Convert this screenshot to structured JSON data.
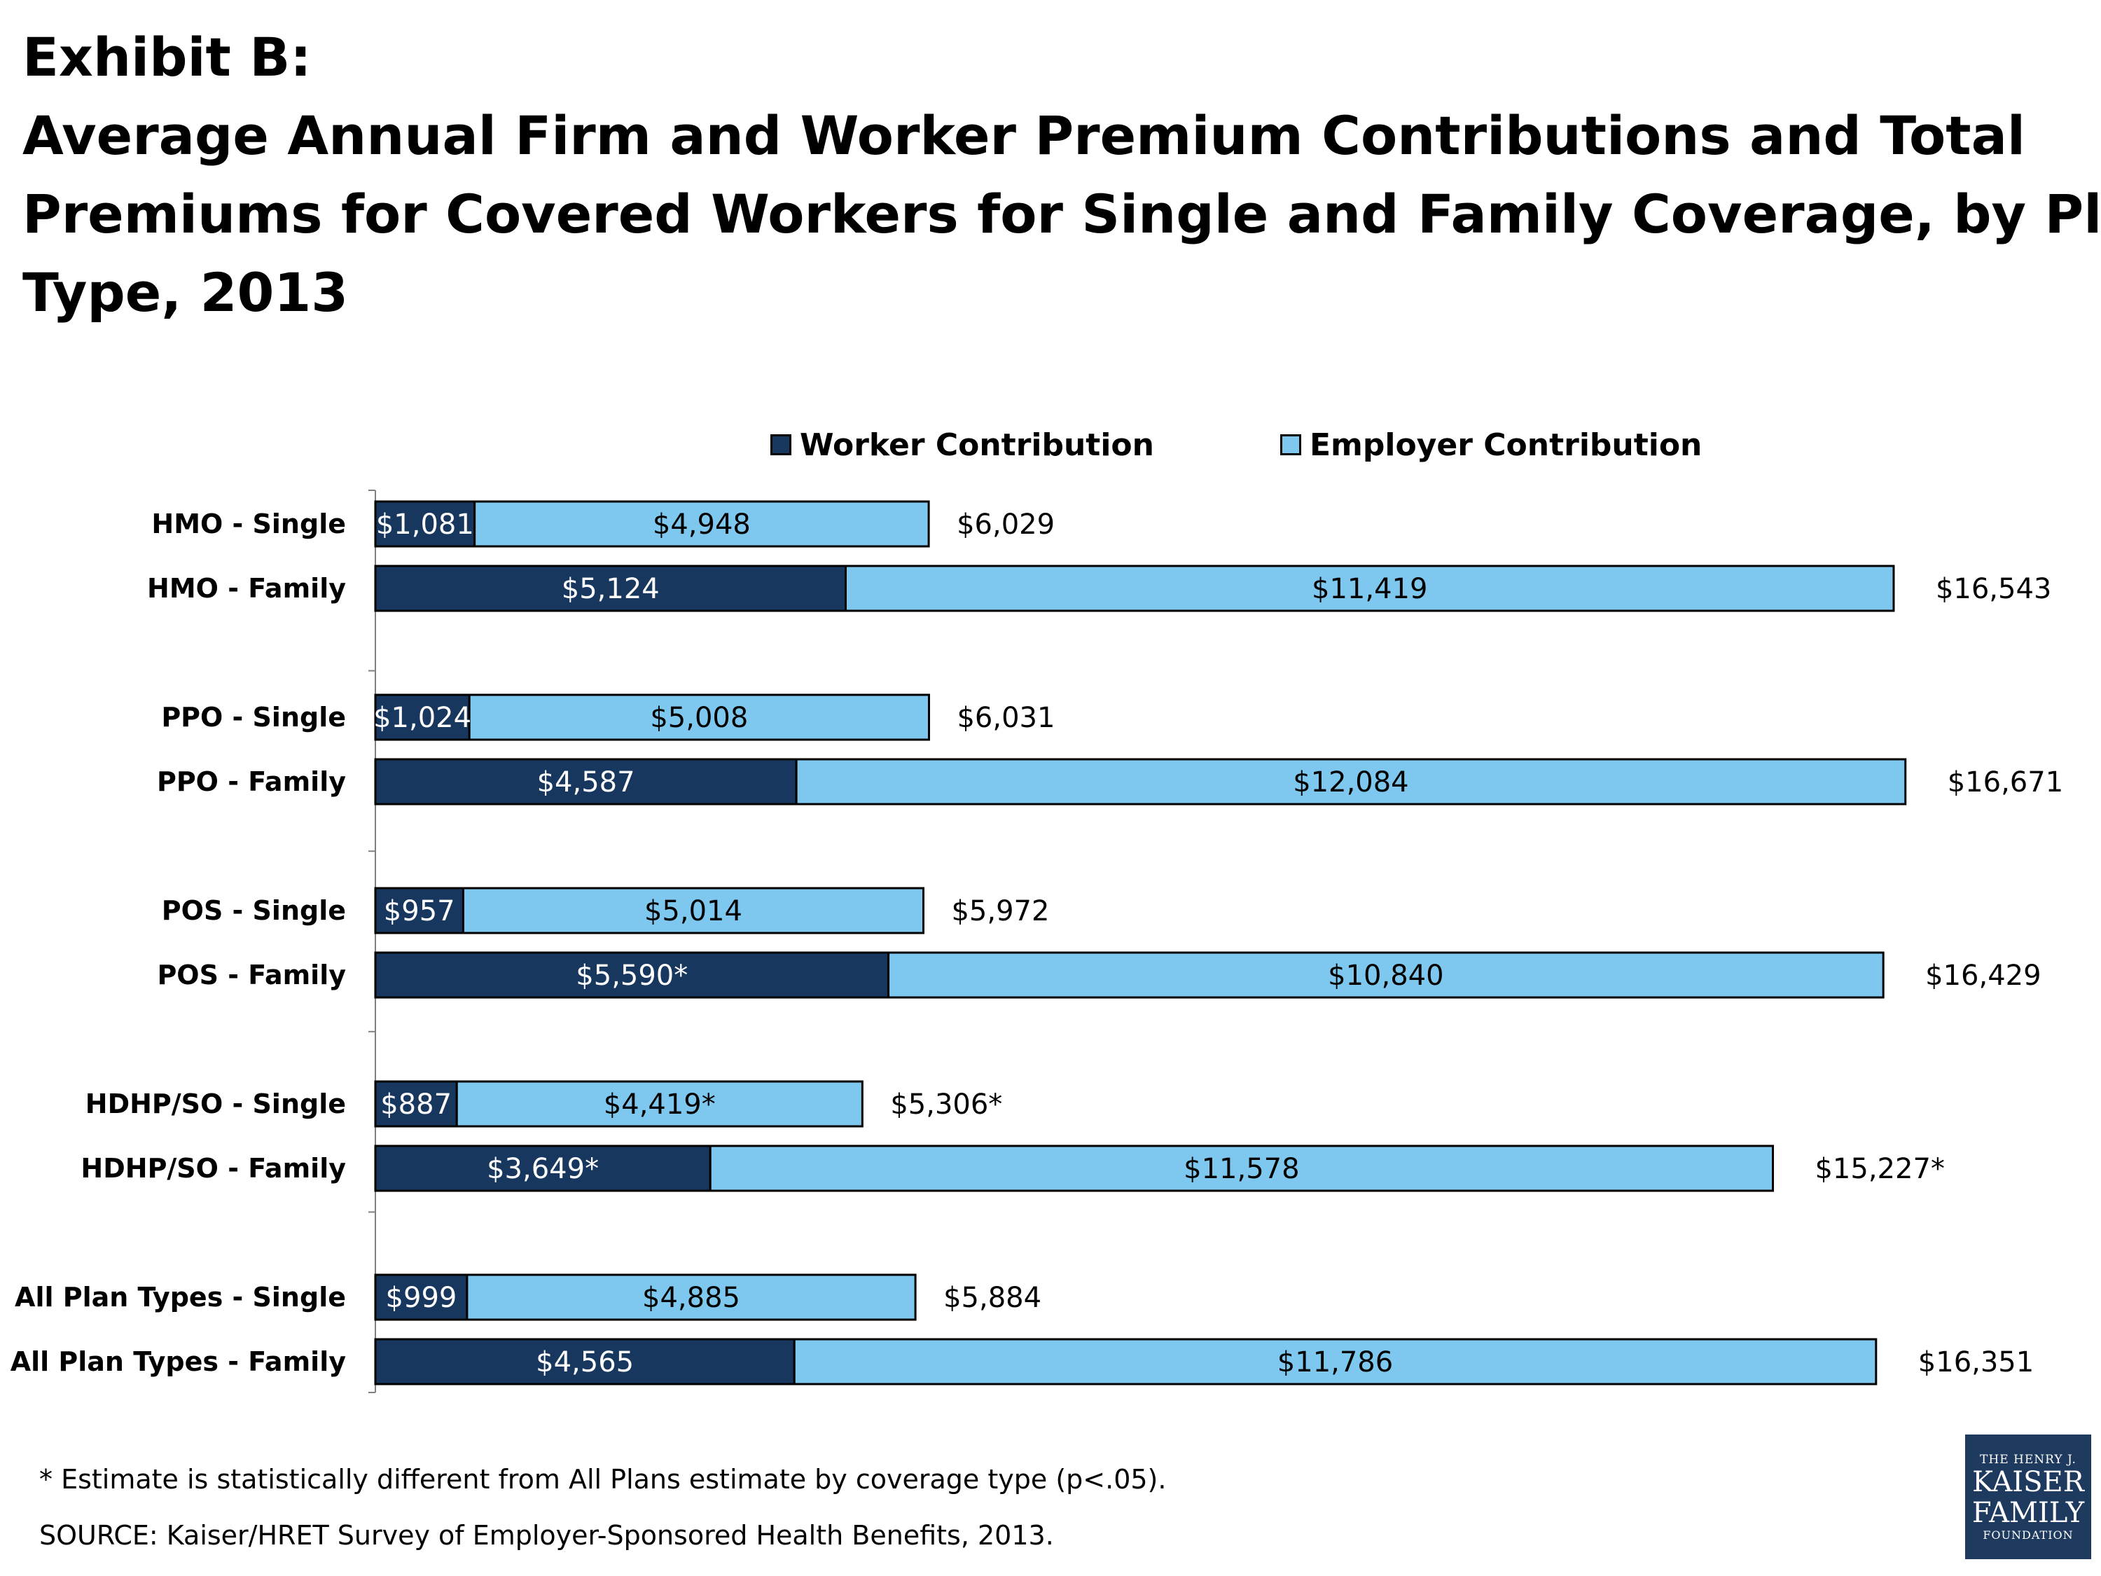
{
  "title": {
    "line1": "Exhibit B:",
    "line2": "Average Annual Firm and Worker Premium Contributions and Total",
    "line3": "Premiums for Covered Workers for Single and Family Coverage, by Plan",
    "line4": "Type, 2013"
  },
  "colors": {
    "worker": "#17375e",
    "employer": "#7ec8ef",
    "border": "#000000"
  },
  "legend": [
    {
      "label": "Worker Contribution",
      "color": "#17375e"
    },
    {
      "label": "Employer Contribution",
      "color": "#7ec8ef"
    }
  ],
  "chart_data": {
    "type": "bar",
    "orientation": "horizontal",
    "stacked": true,
    "xlim": [
      0,
      18000
    ],
    "categories": [
      "HMO - Single",
      "HMO - Family",
      "PPO - Single",
      "PPO - Family",
      "POS - Single",
      "POS - Family",
      "HDHP/SO - Single",
      "HDHP/SO - Family",
      "All Plan Types - Single",
      "All Plan Types - Family"
    ],
    "series": [
      {
        "name": "Worker Contribution",
        "values": [
          1081,
          5124,
          1024,
          4587,
          957,
          5590,
          887,
          3649,
          999,
          4565
        ],
        "labels": [
          "$1,081",
          "$5,124",
          "$1,024",
          "$4,587",
          "$957",
          "$5,590*",
          "$887",
          "$3,649*",
          "$999",
          "$4,565"
        ]
      },
      {
        "name": "Employer Contribution",
        "values": [
          4948,
          11419,
          5008,
          12084,
          5014,
          10840,
          4419,
          11578,
          4885,
          11786
        ],
        "labels": [
          "$4,948",
          "$11,419",
          "$5,008",
          "$12,084",
          "$5,014",
          "$10,840",
          "$4,419*",
          "$11,578",
          "$4,885",
          "$11,786"
        ]
      }
    ],
    "totals": [
      6029,
      16543,
      6031,
      16671,
      5972,
      16429,
      5306,
      15227,
      5884,
      16351
    ],
    "total_labels": [
      "$6,029",
      "$16,543",
      "$6,031",
      "$16,671",
      "$5,972",
      "$16,429",
      "$5,306*",
      "$15,227*",
      "$5,884",
      "$16,351"
    ],
    "legend_position": "top",
    "grid": false
  },
  "footnote": "* Estimate is statistically different from All Plans estimate by coverage type (p<.05).",
  "source": "SOURCE:  Kaiser/HRET Survey of Employer-Sponsored Health Benefits, 2013.",
  "logo": {
    "line1": "THE HENRY J.",
    "line2": "KAISER",
    "line3": "FAMILY",
    "line4": "FOUNDATION"
  }
}
